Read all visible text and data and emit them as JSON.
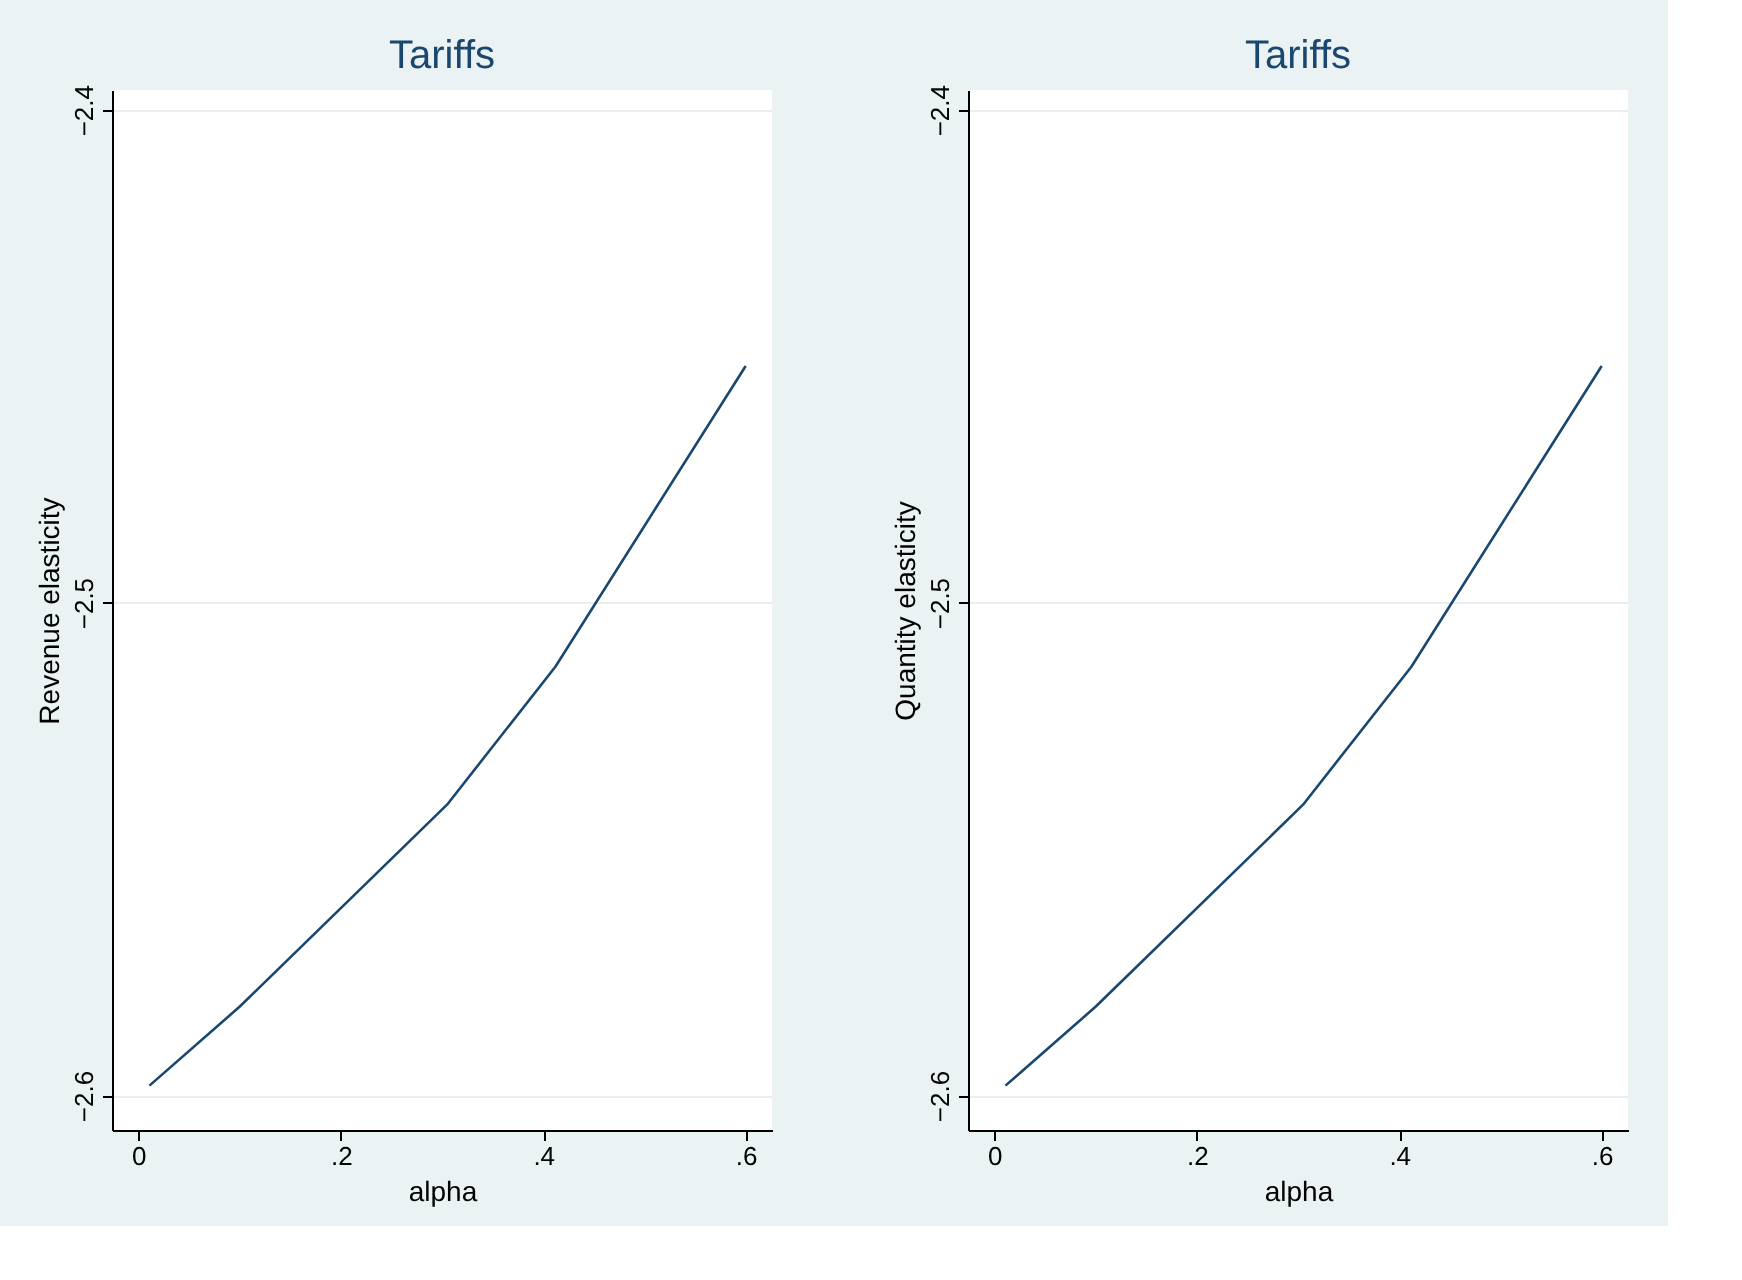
{
  "chart_data": [
    {
      "type": "line",
      "title": "Tariffs",
      "xlabel": "alpha",
      "ylabel": "Revenue elasticity",
      "x": [
        0.011,
        0.1,
        0.305,
        0.412,
        0.6
      ],
      "series": [
        {
          "color": "#1a476f",
          "values": [
            -2.598,
            -2.582,
            -2.541,
            -2.513,
            -2.452
          ]
        }
      ],
      "xlim": [
        -0.026,
        0.626
      ],
      "ylim": [
        -2.607,
        -2.396
      ],
      "xticks": [
        0,
        {
          "value": 0.2,
          "label": ".2"
        },
        {
          "value": 0.4,
          "label": ".4"
        },
        {
          "value": 0.6,
          "label": ".6"
        }
      ],
      "yticks": [
        -2.6,
        -2.5,
        -2.4
      ],
      "grid": "y",
      "legend": false
    },
    {
      "type": "line",
      "title": "Tariffs",
      "xlabel": "alpha",
      "ylabel": "Quantity elasticity",
      "x": [
        0.011,
        0.1,
        0.305,
        0.412,
        0.6
      ],
      "series": [
        {
          "color": "#1a476f",
          "values": [
            -2.598,
            -2.582,
            -2.541,
            -2.513,
            -2.452
          ]
        }
      ],
      "xlim": [
        -0.026,
        0.626
      ],
      "ylim": [
        -2.607,
        -2.396
      ],
      "xticks": [
        0,
        {
          "value": 0.2,
          "label": ".2"
        },
        {
          "value": 0.4,
          "label": ".4"
        },
        {
          "value": 0.6,
          "label": ".6"
        }
      ],
      "yticks": [
        -2.6,
        -2.5,
        -2.4
      ],
      "grid": "y",
      "legend": false
    }
  ]
}
